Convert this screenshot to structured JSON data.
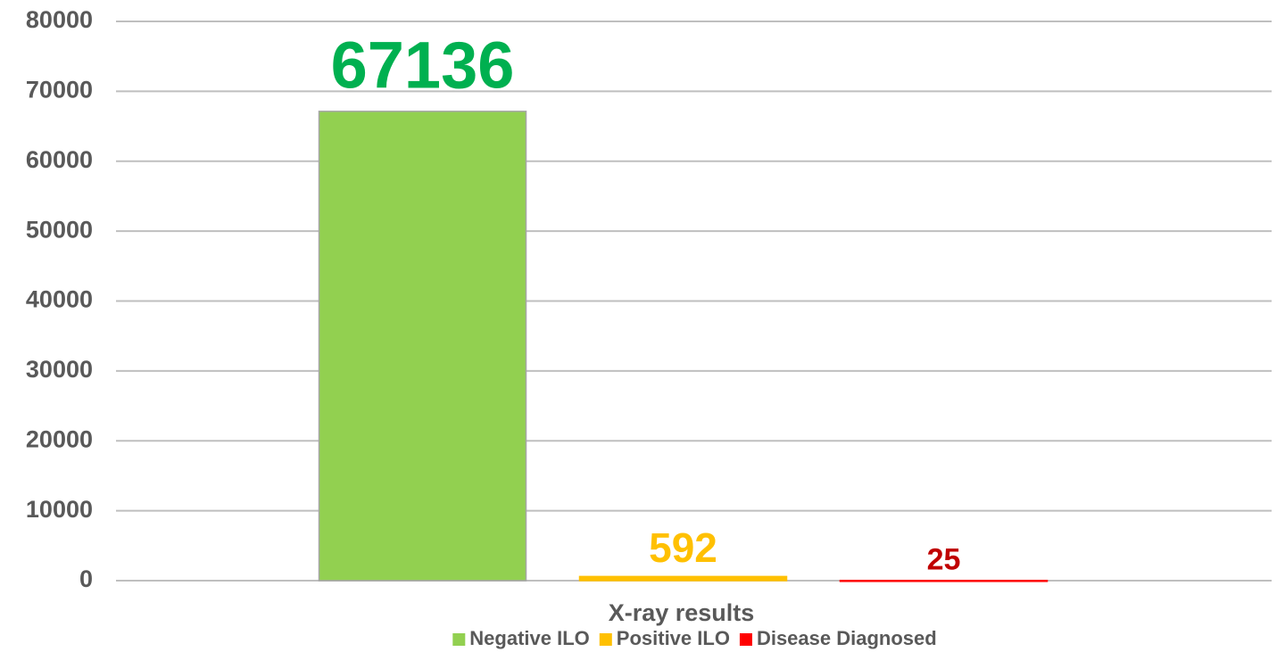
{
  "chart_data": {
    "type": "bar",
    "categories": [
      "X-ray results"
    ],
    "series": [
      {
        "name": "Negative ILO",
        "color": "#92d050",
        "label_color": "#00b050",
        "values": [
          67136
        ]
      },
      {
        "name": "Positive ILO",
        "color": "#ffc000",
        "label_color": "#ffc000",
        "values": [
          592
        ]
      },
      {
        "name": "Disease Diagnosed",
        "color": "#ff0000",
        "label_color": "#c00000",
        "values": [
          25
        ]
      }
    ],
    "ylim": [
      0,
      80000
    ],
    "yticks": [
      0,
      10000,
      20000,
      30000,
      40000,
      50000,
      60000,
      70000,
      80000
    ],
    "grid": true,
    "legend": "bottom"
  }
}
